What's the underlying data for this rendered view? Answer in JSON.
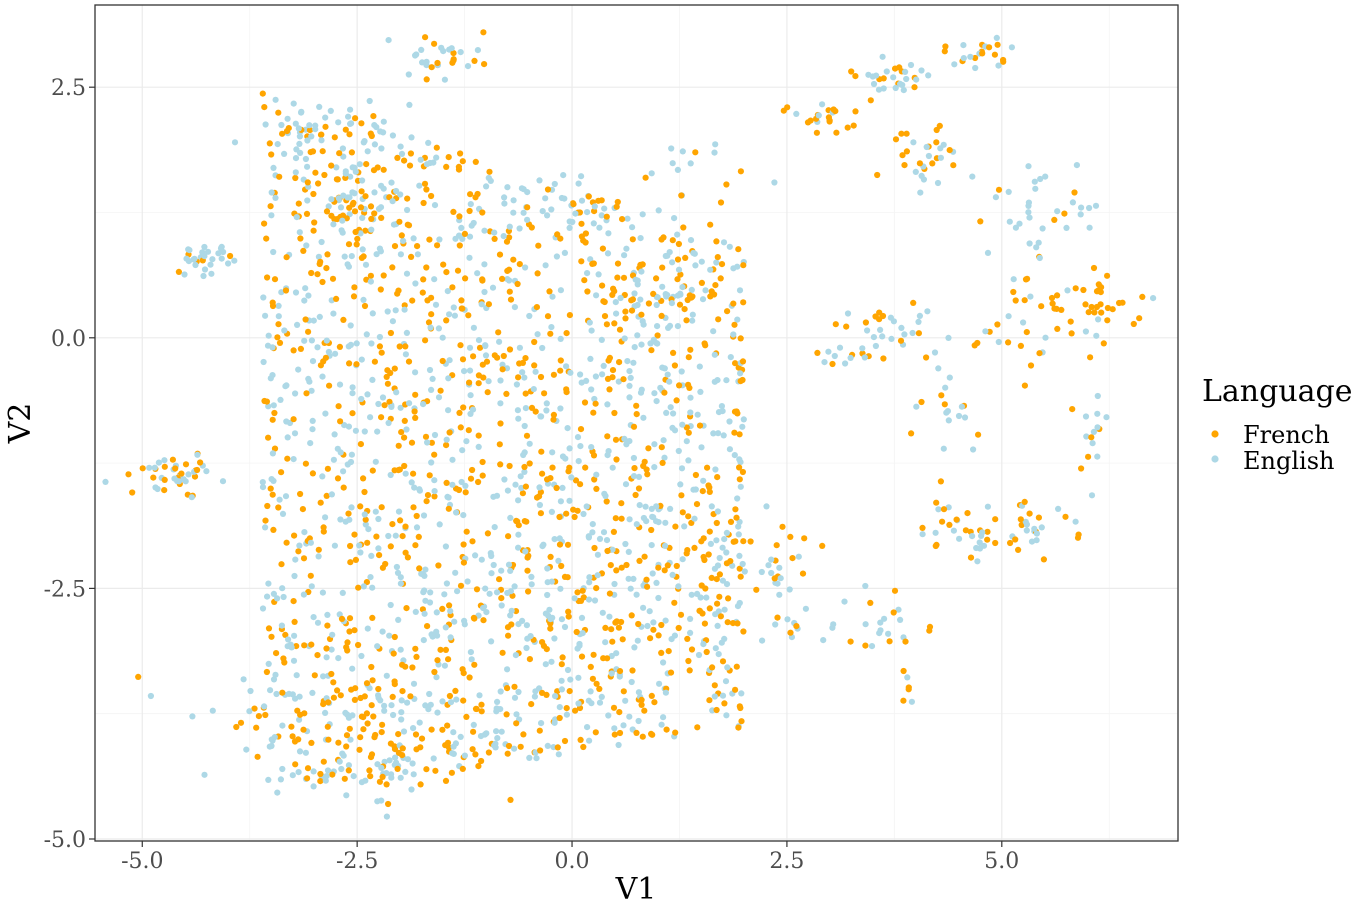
{
  "chart_data": {
    "type": "scatter",
    "xlabel": "V1",
    "ylabel": "V2",
    "xlim": [
      -5.55,
      7.05
    ],
    "ylim": [
      -5.02,
      3.32
    ],
    "x_ticks": [
      -5.0,
      -2.5,
      0.0,
      2.5,
      5.0
    ],
    "x_tick_labels": [
      "-5.0",
      "-2.5",
      "0.0",
      "2.5",
      "5.0"
    ],
    "y_ticks": [
      -5.0,
      -2.5,
      0.0,
      2.5
    ],
    "y_tick_labels": [
      "-5.0",
      "-2.5",
      "0.0",
      "2.5"
    ],
    "grid": true,
    "legend": {
      "title": "Language",
      "position": "right",
      "entries": [
        "French",
        "English"
      ]
    },
    "series": [
      {
        "name": "French",
        "color": "#FFA500"
      },
      {
        "name": "English",
        "color": "#ADD8E6"
      }
    ],
    "clusters": [
      {
        "cx": -4.3,
        "cy": 0.8,
        "sx": 0.15,
        "sy": 0.08,
        "n": 30,
        "french_share": 0.25
      },
      {
        "cx": -4.6,
        "cy": -1.35,
        "sx": 0.2,
        "sy": 0.1,
        "n": 45,
        "french_share": 0.45
      },
      {
        "cx": -2.8,
        "cy": -3.8,
        "sx": 0.8,
        "sy": 0.35,
        "n": 70,
        "french_share": 0.5
      },
      {
        "cx": -2.1,
        "cy": -4.3,
        "sx": 0.5,
        "sy": 0.2,
        "n": 50,
        "french_share": 0.5
      },
      {
        "cx": -1.5,
        "cy": 2.8,
        "sx": 0.25,
        "sy": 0.1,
        "n": 30,
        "french_share": 0.5
      },
      {
        "cx": -2.5,
        "cy": 1.2,
        "sx": 0.35,
        "sy": 0.25,
        "n": 45,
        "french_share": 0.55
      },
      {
        "cx": -2.8,
        "cy": 2.1,
        "sx": 0.35,
        "sy": 0.15,
        "n": 30,
        "french_share": 0.5
      },
      {
        "cx": 2.9,
        "cy": 2.2,
        "sx": 0.25,
        "sy": 0.1,
        "n": 22,
        "french_share": 0.7
      },
      {
        "cx": 3.7,
        "cy": 2.6,
        "sx": 0.25,
        "sy": 0.1,
        "n": 30,
        "french_share": 0.4
      },
      {
        "cx": 4.1,
        "cy": 1.8,
        "sx": 0.25,
        "sy": 0.15,
        "n": 30,
        "french_share": 0.5
      },
      {
        "cx": 4.8,
        "cy": 2.85,
        "sx": 0.2,
        "sy": 0.08,
        "n": 22,
        "french_share": 0.45
      },
      {
        "cx": 5.5,
        "cy": 1.2,
        "sx": 0.35,
        "sy": 0.2,
        "n": 35,
        "french_share": 0.1
      },
      {
        "cx": 6.0,
        "cy": 0.35,
        "sx": 0.35,
        "sy": 0.15,
        "n": 40,
        "french_share": 0.9
      },
      {
        "cx": 5.2,
        "cy": 0.2,
        "sx": 0.4,
        "sy": 0.3,
        "n": 25,
        "french_share": 0.75
      },
      {
        "cx": 3.8,
        "cy": 0.15,
        "sx": 0.3,
        "sy": 0.15,
        "n": 30,
        "french_share": 0.5
      },
      {
        "cx": 4.4,
        "cy": -0.7,
        "sx": 0.15,
        "sy": 0.25,
        "n": 20,
        "french_share": 0.3
      },
      {
        "cx": 4.6,
        "cy": -1.9,
        "sx": 0.35,
        "sy": 0.2,
        "n": 35,
        "french_share": 0.5
      },
      {
        "cx": 5.3,
        "cy": -1.9,
        "sx": 0.25,
        "sy": 0.15,
        "n": 25,
        "french_share": 0.5
      },
      {
        "cx": 6.0,
        "cy": -0.9,
        "sx": 0.08,
        "sy": 0.2,
        "n": 15,
        "french_share": 0.2
      },
      {
        "cx": 2.4,
        "cy": -2.2,
        "sx": 0.25,
        "sy": 0.3,
        "n": 30,
        "french_share": 0.5
      },
      {
        "cx": 3.7,
        "cy": -2.8,
        "sx": 0.3,
        "sy": 0.15,
        "n": 20,
        "french_share": 0.35
      },
      {
        "cx": 3.9,
        "cy": -3.4,
        "sx": 0.05,
        "sy": 0.1,
        "n": 6,
        "french_share": 0.5
      },
      {
        "cx": 3.2,
        "cy": -0.2,
        "sx": 0.3,
        "sy": 0.05,
        "n": 12,
        "french_share": 0.6
      },
      {
        "cx": 2.6,
        "cy": -2.9,
        "sx": 0.3,
        "sy": 0.1,
        "n": 12,
        "french_share": 0.5
      },
      {
        "cx": 1.5,
        "cy": 1.6,
        "sx": 0.3,
        "sy": 0.3,
        "n": 20,
        "french_share": 0.5
      },
      {
        "cx": 1.2,
        "cy": 0.4,
        "sx": 0.3,
        "sy": 0.2,
        "n": 20,
        "french_share": 0.5
      },
      {
        "cx": 0.0,
        "cy": 1.3,
        "sx": 0.3,
        "sy": 0.15,
        "n": 20,
        "french_share": 0.4
      }
    ],
    "bulk_region": {
      "x_range": [
        -3.6,
        2.0
      ],
      "y_center": -1.1,
      "y_half_span_at_left": 2.4,
      "y_top": 2.5,
      "y_bottom": -4.6,
      "n": 1900,
      "french_share": 0.48
    }
  }
}
